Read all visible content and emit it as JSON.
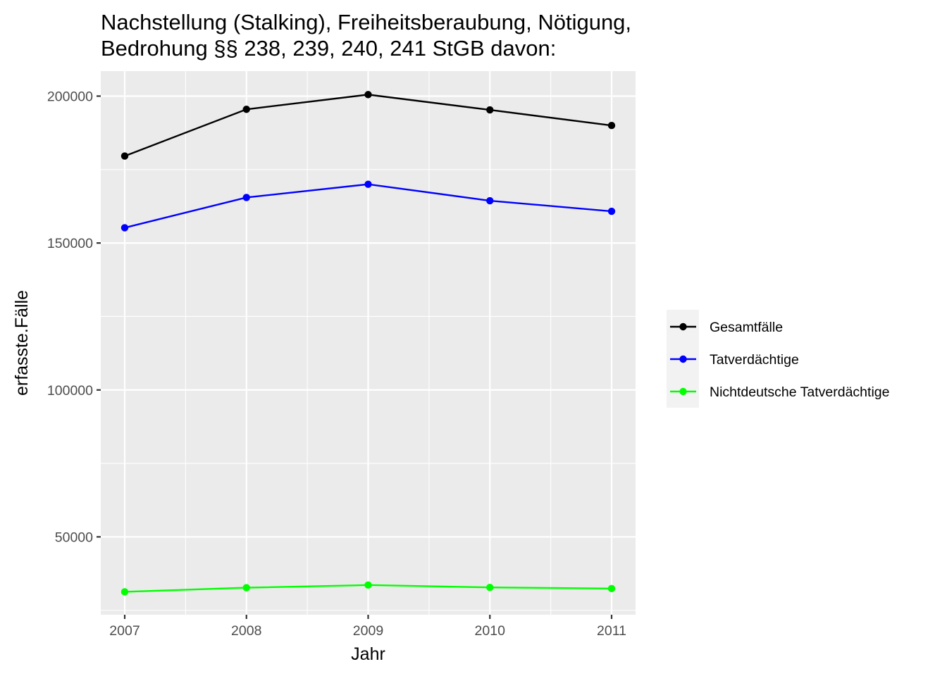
{
  "chart_data": {
    "type": "line",
    "title": "Nachstellung (Stalking), Freiheitsberaubung, Nötigung,",
    "subtitle": "Bedrohung §§ 238, 239, 240, 241 StGB davon:",
    "xlabel": "Jahr",
    "ylabel": "erfasste.Fälle",
    "x": [
      "2007",
      "2008",
      "2009",
      "2010",
      "2011"
    ],
    "x_ticks": [
      "2007",
      "2008",
      "2009",
      "2010",
      "2011"
    ],
    "y_ticks": [
      "50000",
      "100000",
      "150000",
      "200000"
    ],
    "ylim": [
      23500,
      208500
    ],
    "grid": true,
    "legend_position": "right",
    "series": [
      {
        "name": "Gesamtfälle",
        "color": "#000000",
        "values": [
          179600,
          195500,
          200500,
          195300,
          190000
        ]
      },
      {
        "name": "Tatverdächtige",
        "color": "#0000ff",
        "values": [
          155200,
          165500,
          170000,
          164400,
          160800
        ]
      },
      {
        "name": "Nichtdeutsche Tatverdächtige",
        "color": "#00ff00",
        "values": [
          31300,
          32700,
          33600,
          32800,
          32400
        ]
      }
    ]
  }
}
